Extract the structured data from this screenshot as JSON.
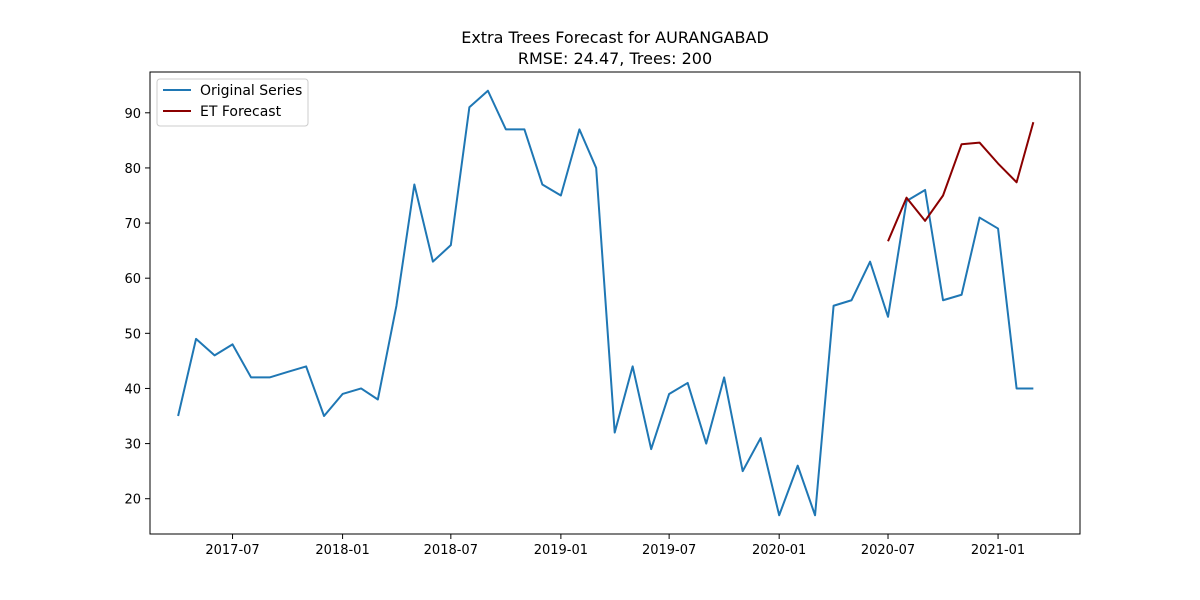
{
  "chart_data": {
    "type": "line",
    "title": "Extra Trees Forecast for AURANGABAD",
    "subtitle": "RMSE: 24.47, Trees: 200",
    "xlabel": "",
    "ylabel": "",
    "x_ticks": [
      "2017-07",
      "2018-01",
      "2018-07",
      "2019-01",
      "2019-07",
      "2020-01",
      "2020-07",
      "2021-01"
    ],
    "y_ticks": [
      20,
      30,
      40,
      50,
      60,
      70,
      80,
      90
    ],
    "xlim": [
      "2017-02-13",
      "2021-05-18"
    ],
    "ylim": [
      13.6,
      97.4
    ],
    "grid": false,
    "legend_position": "top-left",
    "series": [
      {
        "name": "Original Series",
        "color": "#1f77b4",
        "x": [
          "2017-04-01",
          "2017-05-01",
          "2017-06-01",
          "2017-07-01",
          "2017-08-01",
          "2017-09-01",
          "2017-10-01",
          "2017-11-01",
          "2017-12-01",
          "2018-01-01",
          "2018-02-01",
          "2018-03-01",
          "2018-04-01",
          "2018-05-01",
          "2018-06-01",
          "2018-07-01",
          "2018-08-01",
          "2018-09-01",
          "2018-10-01",
          "2018-11-01",
          "2018-12-01",
          "2019-01-01",
          "2019-02-01",
          "2019-03-01",
          "2019-04-01",
          "2019-05-01",
          "2019-06-01",
          "2019-07-01",
          "2019-08-01",
          "2019-09-01",
          "2019-10-01",
          "2019-11-01",
          "2019-12-01",
          "2020-01-01",
          "2020-02-01",
          "2020-03-01",
          "2020-04-01",
          "2020-05-01",
          "2020-06-01",
          "2020-07-01",
          "2020-08-01",
          "2020-09-01",
          "2020-10-01",
          "2020-11-01",
          "2020-12-01",
          "2021-01-01",
          "2021-02-01",
          "2021-03-01"
        ],
        "values": [
          35,
          49,
          46,
          48,
          42,
          42,
          43,
          44,
          35,
          39,
          40,
          38,
          55,
          77,
          63,
          66,
          91,
          94,
          87,
          87,
          77,
          75,
          87,
          80,
          32,
          44,
          29,
          39,
          41,
          30,
          42,
          25,
          31,
          17,
          26,
          17,
          55,
          56,
          63,
          53,
          74,
          76,
          56,
          57,
          71,
          69,
          40,
          40
        ]
      },
      {
        "name": "ET Forecast",
        "color": "#8b0000",
        "x": [
          "2020-07-01",
          "2020-08-01",
          "2020-09-01",
          "2020-10-01",
          "2020-11-01",
          "2020-12-01",
          "2021-01-01",
          "2021-02-01",
          "2021-03-01"
        ],
        "values": [
          66.7,
          74.6,
          70.4,
          75.0,
          84.3,
          84.6,
          80.8,
          77.4,
          88.3
        ]
      }
    ]
  }
}
